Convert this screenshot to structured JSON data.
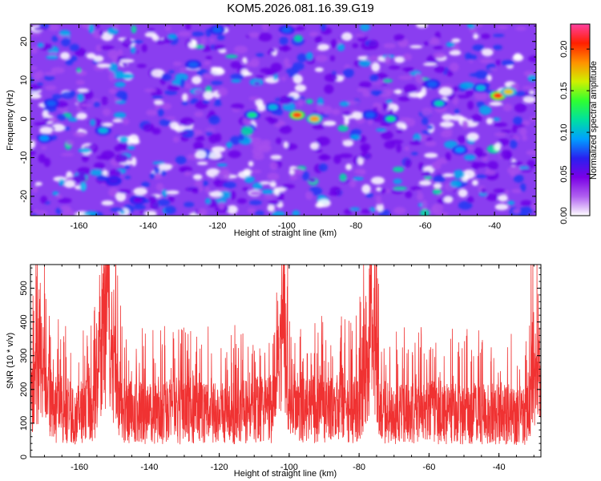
{
  "title": "KOM5.2026.081.16.39.G19",
  "colors": {
    "signal": "#f03232",
    "frame": "#000000"
  },
  "chart_data": [
    {
      "type": "heatmap",
      "xlabel": "Height of straight line (km)",
      "ylabel": "Frequency (Hz)",
      "xlim": [
        -174,
        -28
      ],
      "ylim": [
        -25,
        24.5
      ],
      "xticks": [
        -160,
        -140,
        -120,
        -100,
        -80,
        -60,
        -40
      ],
      "xtick_labels": [
        "-160",
        "-140",
        "-120",
        "-100",
        "-80",
        "-60",
        "-40"
      ],
      "yticks": [
        -20,
        -10,
        0,
        10,
        20
      ],
      "ytick_labels": [
        "-20",
        "-10",
        "0",
        "10",
        "20"
      ],
      "colorbar": {
        "label": "Normalized spectral amplitude",
        "range": [
          0,
          0.23
        ],
        "ticks": [
          0.0,
          0.05,
          0.1,
          0.15,
          0.2
        ],
        "tick_labels": [
          "0.00",
          "0.05",
          "0.10",
          "0.15",
          "0.20"
        ],
        "colormap": [
          "#ffffff",
          "#b060f0",
          "#7a00e6",
          "#2a20f0",
          "#00a0ff",
          "#00e0a0",
          "#30ff30",
          "#d0f000",
          "#ff9000",
          "#ff2000",
          "#ff40a0"
        ]
      },
      "grid": false,
      "hotspots": [
        {
          "x": -97,
          "y": 1,
          "value": 0.2
        },
        {
          "x": -92,
          "y": 0,
          "value": 0.18
        },
        {
          "x": -39,
          "y": 6,
          "value": 0.21
        },
        {
          "x": -36,
          "y": 7,
          "value": 0.17
        },
        {
          "x": -110,
          "y": 1,
          "value": 0.12
        },
        {
          "x": -70,
          "y": 0,
          "value": 0.12
        },
        {
          "x": -56,
          "y": 4,
          "value": 0.11
        },
        {
          "x": -153,
          "y": -3,
          "value": 0.1
        },
        {
          "x": -170,
          "y": -5,
          "value": 0.09
        },
        {
          "x": -168,
          "y": 4,
          "value": 0.08
        },
        {
          "x": -50,
          "y": -8,
          "value": 0.09
        },
        {
          "x": -127,
          "y": 14,
          "value": 0.08
        },
        {
          "x": -104,
          "y": 3,
          "value": 0.1
        },
        {
          "x": -76,
          "y": 1,
          "value": 0.08
        },
        {
          "x": -120,
          "y": 23,
          "value": 0.08
        },
        {
          "x": -100,
          "y": 23,
          "value": 0.08
        },
        {
          "x": -58,
          "y": 9,
          "value": 0.08
        },
        {
          "x": -44,
          "y": 8,
          "value": 0.1
        },
        {
          "x": -150,
          "y": -16,
          "value": 0.06
        },
        {
          "x": -143,
          "y": -21,
          "value": 0.05
        }
      ]
    },
    {
      "type": "line",
      "xlabel": "Height of straight line (km)",
      "ylabel": "SNR (10 * v/v)",
      "xlim": [
        -174,
        -28
      ],
      "ylim": [
        0,
        570
      ],
      "xticks": [
        -160,
        -140,
        -120,
        -100,
        -80,
        -60,
        -40
      ],
      "xtick_labels": [
        "-160",
        "-140",
        "-120",
        "-100",
        "-80",
        "-60",
        "-40"
      ],
      "yticks": [
        0,
        100,
        200,
        300,
        400,
        500
      ],
      "ytick_labels": [
        "0",
        "100",
        "200",
        "300",
        "400",
        "500"
      ],
      "grid": false,
      "series": [
        {
          "color": "#f03232",
          "x": [
            -174,
            -172,
            -168,
            -164,
            -160,
            -156,
            -154,
            -153,
            -152,
            -151,
            -148,
            -144,
            -140,
            -136,
            -132,
            -128,
            -124,
            -120,
            -116,
            -112,
            -108,
            -104,
            -102,
            -100,
            -98,
            -96,
            -92,
            -88,
            -84,
            -80,
            -77,
            -76,
            -74,
            -72,
            -68,
            -64,
            -60,
            -56,
            -52,
            -48,
            -44,
            -40,
            -36,
            -32,
            -30,
            -28
          ],
          "y": [
            200,
            390,
            170,
            160,
            150,
            155,
            410,
            570,
            560,
            400,
            160,
            150,
            145,
            150,
            148,
            150,
            150,
            145,
            150,
            155,
            160,
            160,
            550,
            170,
            165,
            160,
            160,
            165,
            160,
            165,
            430,
            420,
            160,
            155,
            150,
            150,
            150,
            150,
            148,
            145,
            145,
            145,
            140,
            140,
            320,
            250
          ]
        }
      ]
    }
  ]
}
